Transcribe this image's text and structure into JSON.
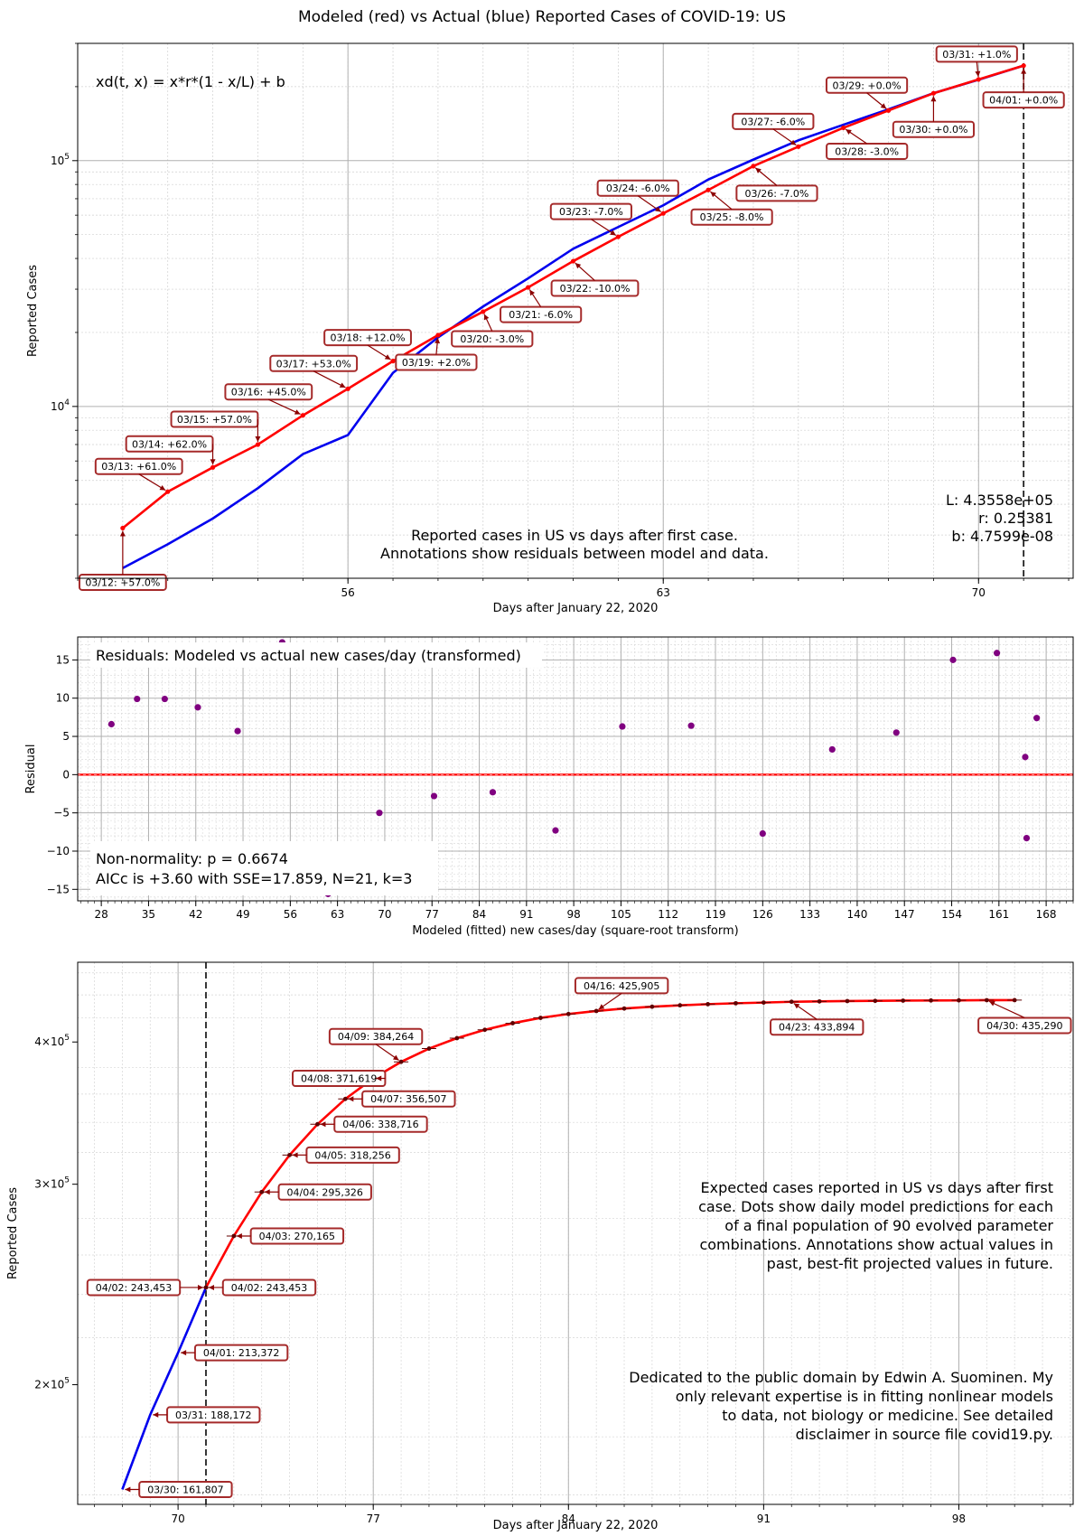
{
  "figure_title": "Modeled (red) vs Actual (blue) Reported Cases of COVID-19: US",
  "colors": {
    "model": "#ff0000",
    "actual": "#0000ee",
    "residual": "#800080",
    "annotation_border": "#a52a2a",
    "annotation_arrow": "#8b0000"
  },
  "chart_data": [
    {
      "type": "line",
      "title": "",
      "xlabel": "Days after January 22, 2020",
      "ylabel": "Reported Cases",
      "yscale": "log",
      "xlim": [
        50,
        72.1
      ],
      "ylim": [
        2000,
        300000
      ],
      "xticks": [
        56,
        63,
        70
      ],
      "yticks": [
        {
          "value": 10000,
          "label": "10^4"
        },
        {
          "value": 100000,
          "label": "10^5"
        }
      ],
      "grid": true,
      "vline_x": 71,
      "formula_text": "xd(t, x) = x*r*(1 - x/L) + b",
      "params_text": [
        "L: 4.3558e+05",
        "r: 0.25381",
        "b: 4.7599e-08"
      ],
      "caption": [
        "Reported cases in US vs days after first case.",
        "Annotations show residuals between model and data."
      ],
      "series": [
        {
          "name": "Modeled",
          "color": "#ff0000",
          "x": [
            51,
            52,
            53,
            54,
            55,
            56,
            57,
            58,
            59,
            60,
            61,
            62,
            63,
            64,
            65,
            66,
            67,
            68,
            69,
            70,
            71
          ],
          "y": [
            3200,
            4500,
            5650,
            7000,
            9200,
            11800,
            15300,
            19500,
            24300,
            30500,
            39000,
            49000,
            61000,
            76000,
            95000,
            114000,
            136000,
            160000,
            188000,
            214000,
            243453
          ]
        },
        {
          "name": "Actual",
          "color": "#0000ee",
          "x": [
            51,
            52,
            53,
            54,
            55,
            56,
            57,
            58,
            59,
            60,
            61,
            62,
            63,
            64,
            65,
            66,
            67,
            68,
            69,
            70,
            71
          ],
          "y": [
            2200,
            2750,
            3500,
            4650,
            6400,
            7650,
            13700,
            19100,
            25500,
            33200,
            43800,
            53700,
            65800,
            83800,
            101000,
            121000,
            140000,
            161807,
            188172,
            213372,
            243453
          ]
        }
      ],
      "annotations": [
        {
          "text": "03/12: +57.0%",
          "x": 51,
          "y": 3200
        },
        {
          "text": "03/13: +61.0%",
          "x": 52,
          "y": 4500
        },
        {
          "text": "03/14: +62.0%",
          "x": 53,
          "y": 5650
        },
        {
          "text": "03/15: +57.0%",
          "x": 54,
          "y": 7000
        },
        {
          "text": "03/16: +45.0%",
          "x": 55,
          "y": 9200
        },
        {
          "text": "03/17: +53.0%",
          "x": 56,
          "y": 11800
        },
        {
          "text": "03/18: +12.0%",
          "x": 57,
          "y": 15300
        },
        {
          "text": "03/19: +2.0%",
          "x": 58,
          "y": 19500
        },
        {
          "text": "03/20: -3.0%",
          "x": 59,
          "y": 24300
        },
        {
          "text": "03/21: -6.0%",
          "x": 60,
          "y": 30500
        },
        {
          "text": "03/22: -10.0%",
          "x": 61,
          "y": 39000
        },
        {
          "text": "03/23: -7.0%",
          "x": 62,
          "y": 49000
        },
        {
          "text": "03/24: -6.0%",
          "x": 63,
          "y": 61000
        },
        {
          "text": "03/25: -8.0%",
          "x": 64,
          "y": 76000
        },
        {
          "text": "03/26: -7.0%",
          "x": 65,
          "y": 95000
        },
        {
          "text": "03/27: -6.0%",
          "x": 66,
          "y": 114000
        },
        {
          "text": "03/28: -3.0%",
          "x": 67,
          "y": 136000
        },
        {
          "text": "03/29: +0.0%",
          "x": 68,
          "y": 160000
        },
        {
          "text": "03/30: +0.0%",
          "x": 69,
          "y": 188000
        },
        {
          "text": "03/31: +1.0%",
          "x": 70,
          "y": 214000
        },
        {
          "text": "04/01: +0.0%",
          "x": 71,
          "y": 243453
        }
      ]
    },
    {
      "type": "scatter",
      "title": "",
      "xlabel": "Modeled (fitted) new cases/day (square-root transform)",
      "ylabel": "Residual",
      "xlim": [
        24.5,
        172
      ],
      "ylim": [
        -16.5,
        18
      ],
      "xticks": [
        28,
        35,
        42,
        49,
        56,
        63,
        70,
        77,
        84,
        91,
        98,
        105,
        112,
        119,
        126,
        133,
        140,
        147,
        154,
        161,
        168
      ],
      "yticks": [
        -15,
        -10,
        -5,
        0,
        5,
        10,
        15
      ],
      "grid": true,
      "zero_line": 0,
      "header_text": "Residuals: Modeled vs actual new cases/day (transformed)",
      "stats_text": [
        "Non-normality: p = 0.6674",
        "AICc is +3.60 with SSE=17.859, N=21, k=3"
      ],
      "points": [
        {
          "x": 29.5,
          "y": 6.6
        },
        {
          "x": 33.3,
          "y": 9.9
        },
        {
          "x": 37.4,
          "y": 9.9
        },
        {
          "x": 42.3,
          "y": 8.8
        },
        {
          "x": 48.2,
          "y": 5.7
        },
        {
          "x": 54.8,
          "y": 17.3
        },
        {
          "x": 61.6,
          "y": -15.6
        },
        {
          "x": 69.2,
          "y": -5.0
        },
        {
          "x": 77.3,
          "y": -2.8
        },
        {
          "x": 86.0,
          "y": -2.3
        },
        {
          "x": 95.3,
          "y": -7.3
        },
        {
          "x": 105.2,
          "y": 6.3
        },
        {
          "x": 115.4,
          "y": 6.4
        },
        {
          "x": 126.0,
          "y": -7.7
        },
        {
          "x": 136.3,
          "y": 3.3
        },
        {
          "x": 145.8,
          "y": 5.5
        },
        {
          "x": 154.2,
          "y": 15.0
        },
        {
          "x": 160.7,
          "y": 15.9
        },
        {
          "x": 164.9,
          "y": 2.3
        },
        {
          "x": 165.1,
          "y": -8.3
        },
        {
          "x": 166.6,
          "y": 7.4
        }
      ]
    },
    {
      "type": "line",
      "title": "",
      "xlabel": "Days after January 22, 2020",
      "ylabel": "Reported Cases",
      "yscale": "log",
      "xlim": [
        66.4,
        102.1
      ],
      "ylim": [
        157000,
        470000
      ],
      "xticks": [
        70,
        77,
        84,
        91,
        98
      ],
      "yticks": [
        {
          "value": 200000,
          "label": "2×10^5"
        },
        {
          "value": 300000,
          "label": "3×10^5"
        },
        {
          "value": 400000,
          "label": "4×10^5"
        }
      ],
      "grid": true,
      "vline_x": 71,
      "caption": [
        "Expected cases reported in US vs days after first",
        "case. Dots show daily model predictions for each",
        "of a final population of 90 evolved parameter",
        "combinations. Annotations show actual values in",
        "past, best-fit projected values in future."
      ],
      "disclaimer": [
        "Dedicated to the public domain by Edwin A. Suominen. My",
        "only relevant expertise is in fitting nonlinear models",
        "to data, not biology or medicine. See detailed",
        "disclaimer in source file covid19.py."
      ],
      "series": [
        {
          "name": "Actual",
          "color": "#0000ee",
          "x": [
            68,
            69,
            70,
            71
          ],
          "y": [
            161807,
            188172,
            213372,
            243453
          ]
        },
        {
          "name": "Modeled",
          "color": "#ff0000",
          "x": [
            71,
            72,
            73,
            74,
            75,
            76,
            77,
            78,
            79,
            80,
            81,
            82,
            83,
            84,
            85,
            86,
            87,
            88,
            89,
            90,
            91,
            92,
            93,
            94,
            95,
            96,
            97,
            98,
            99,
            100
          ],
          "y": [
            243453,
            270165,
            295326,
            318256,
            338716,
            356507,
            371619,
            384264,
            394700,
            403100,
            410000,
            415500,
            420000,
            423300,
            425905,
            428000,
            429600,
            430800,
            431800,
            432600,
            433200,
            433894,
            434200,
            434500,
            434700,
            434900,
            435050,
            435150,
            435290,
            435350
          ]
        }
      ],
      "annotations": [
        {
          "text": "03/30: 161,807",
          "x": 68,
          "y": 161807
        },
        {
          "text": "03/31: 188,172",
          "x": 69,
          "y": 188172
        },
        {
          "text": "04/01: 213,372",
          "x": 70,
          "y": 213372
        },
        {
          "text": "04/02: 243,453",
          "x": 71,
          "y": 243453
        },
        {
          "text": "04/02: 243,453",
          "x": 71,
          "y": 243453
        },
        {
          "text": "04/03: 270,165",
          "x": 72,
          "y": 270165
        },
        {
          "text": "04/04: 295,326",
          "x": 73,
          "y": 295326
        },
        {
          "text": "04/05: 318,256",
          "x": 74,
          "y": 318256
        },
        {
          "text": "04/06: 338,716",
          "x": 75,
          "y": 338716
        },
        {
          "text": "04/07: 356,507",
          "x": 76,
          "y": 356507
        },
        {
          "text": "04/08: 371,619",
          "x": 77,
          "y": 371619
        },
        {
          "text": "04/09: 384,264",
          "x": 78,
          "y": 384264
        },
        {
          "text": "04/16: 425,905",
          "x": 85,
          "y": 425905
        },
        {
          "text": "04/23: 433,894",
          "x": 92,
          "y": 433894
        },
        {
          "text": "04/30: 435,290",
          "x": 99,
          "y": 435290
        }
      ]
    }
  ]
}
